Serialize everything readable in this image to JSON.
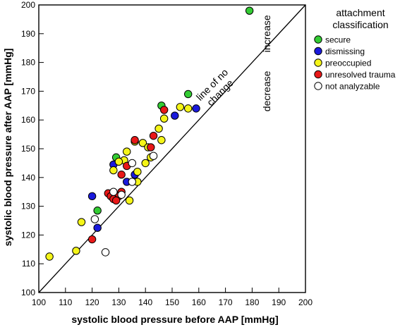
{
  "chart_data": {
    "type": "scatter",
    "xlabel": "systolic blood pressure before AAP [mmHg]",
    "ylabel": "systolic blood pressure after AAP [mmHg]",
    "xlim": [
      100,
      200
    ],
    "ylim": [
      100,
      200
    ],
    "x_ticks": [
      "100",
      "110",
      "120",
      "130",
      "140",
      "150",
      "160",
      "170",
      "180",
      "190",
      "200"
    ],
    "y_ticks": [
      "100",
      "110",
      "120",
      "130",
      "140",
      "150",
      "160",
      "170",
      "180",
      "190",
      "200"
    ],
    "grid": false,
    "legend_position": "top-right",
    "legend_title": [
      "attachment",
      "classification"
    ],
    "reference_line": {
      "from": [
        100,
        100
      ],
      "to": [
        200,
        200
      ],
      "label": [
        "line of no",
        "change"
      ]
    },
    "region_labels": {
      "above": "increase",
      "below": "decrease"
    },
    "series": [
      {
        "name": "secure",
        "color": "#33cc33",
        "points": [
          [
            179,
            198
          ],
          [
            156,
            169
          ],
          [
            146,
            165
          ],
          [
            129,
            147
          ],
          [
            122,
            128.5
          ]
        ]
      },
      {
        "name": "dismissing",
        "color": "#1a1adc",
        "points": [
          [
            159,
            164
          ],
          [
            151,
            161.5
          ],
          [
            128,
            144.5
          ],
          [
            136,
            141
          ],
          [
            133,
            138.5
          ],
          [
            120,
            133.5
          ],
          [
            122,
            122.5
          ]
        ]
      },
      {
        "name": "preoccupied",
        "color": "#f5f518",
        "points": [
          [
            153,
            164.5
          ],
          [
            156,
            164
          ],
          [
            147,
            160.5
          ],
          [
            145,
            157
          ],
          [
            146,
            153
          ],
          [
            136,
            152.5
          ],
          [
            139,
            152
          ],
          [
            141,
            150.5
          ],
          [
            133,
            149
          ],
          [
            132,
            146
          ],
          [
            130,
            145.5
          ],
          [
            140,
            145
          ],
          [
            142,
            147
          ],
          [
            128,
            142.5
          ],
          [
            137,
            142
          ],
          [
            137,
            138.5
          ],
          [
            134,
            132
          ],
          [
            116,
            124.5
          ],
          [
            114,
            114.5
          ],
          [
            104,
            112.5
          ]
        ]
      },
      {
        "name": "unresolved trauma",
        "color": "#e81818",
        "points": [
          [
            147,
            163.5
          ],
          [
            143,
            154.5
          ],
          [
            136,
            153
          ],
          [
            142,
            150.5
          ],
          [
            133,
            144
          ],
          [
            131,
            141
          ],
          [
            126,
            134.5
          ],
          [
            128,
            134
          ],
          [
            131,
            135
          ],
          [
            127,
            133.5
          ],
          [
            129,
            133
          ],
          [
            130,
            133.5
          ],
          [
            128,
            132.5
          ],
          [
            129,
            132
          ],
          [
            120,
            118.5
          ]
        ]
      },
      {
        "name": "not analyzable",
        "color": "#ffffff",
        "points": [
          [
            135,
            145
          ],
          [
            143,
            147.5
          ],
          [
            135,
            138.5
          ],
          [
            128,
            135
          ],
          [
            131,
            134
          ],
          [
            121,
            125.5
          ],
          [
            125,
            114
          ]
        ]
      }
    ]
  }
}
